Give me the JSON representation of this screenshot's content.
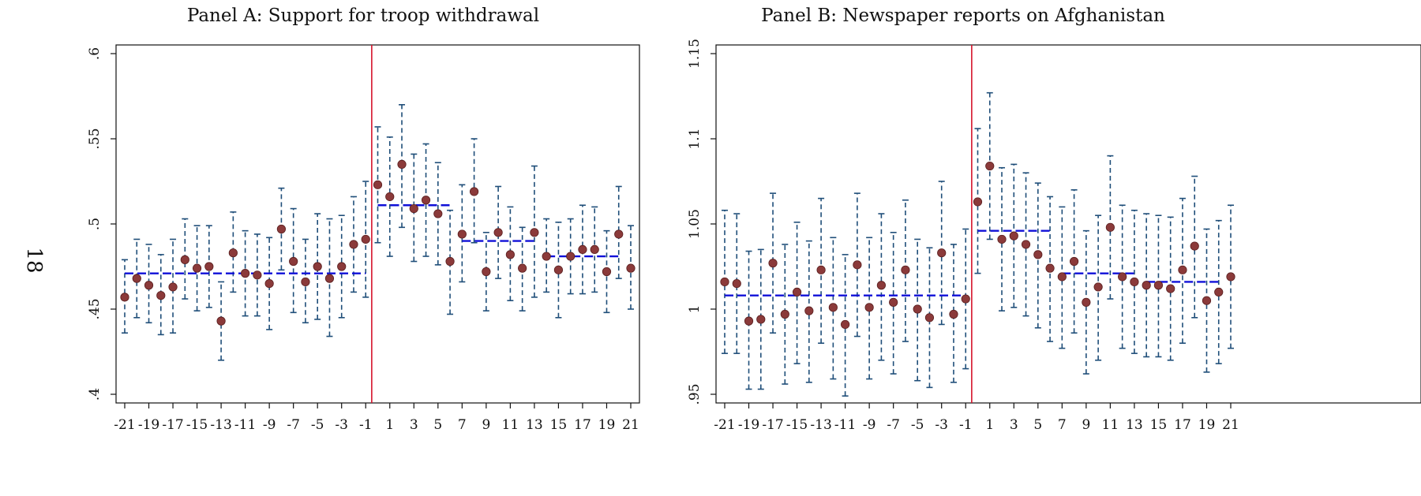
{
  "page_number": "18",
  "colors": {
    "point": "#8b3a3a",
    "ci": "#1f4e79",
    "mean": "#1010d8",
    "cutoff": "#d6142c"
  },
  "chart_data": [
    {
      "type": "scatter",
      "title": "Panel A: Support for troop withdrawal",
      "xlabel": "",
      "ylabel": "",
      "xlim": [
        -21,
        21
      ],
      "ylim": [
        0.4,
        0.6
      ],
      "xticks": [
        -21,
        -19,
        -17,
        -15,
        -13,
        -11,
        -9,
        -7,
        -5,
        -3,
        -1,
        1,
        3,
        5,
        7,
        9,
        11,
        13,
        15,
        17,
        19,
        21
      ],
      "xtick_labels": [
        "-21",
        "-19",
        "-17",
        "-15",
        "-13",
        "-11",
        "-9",
        "-7",
        "-5",
        "-3",
        "-1",
        "1",
        "3",
        "5",
        "7",
        "9",
        "11",
        "13",
        "15",
        "17",
        "19",
        "21"
      ],
      "yticks": [
        0.4,
        0.45,
        0.5,
        0.55,
        0.6
      ],
      "ytick_labels": [
        ".4",
        ".45",
        ".5",
        ".55",
        ".6"
      ],
      "x": [
        -21,
        -20,
        -19,
        -18,
        -17,
        -16,
        -15,
        -14,
        -13,
        -12,
        -11,
        -10,
        -9,
        -8,
        -7,
        -6,
        -5,
        -4,
        -3,
        -2,
        -1,
        0,
        1,
        2,
        3,
        4,
        5,
        6,
        7,
        8,
        9,
        10,
        11,
        12,
        13,
        14,
        15,
        16,
        17,
        18,
        19,
        20,
        21
      ],
      "y": [
        0.457,
        0.468,
        0.464,
        0.458,
        0.463,
        0.479,
        0.474,
        0.475,
        0.443,
        0.483,
        0.471,
        0.47,
        0.465,
        0.497,
        0.478,
        0.466,
        0.475,
        0.468,
        0.475,
        0.488,
        0.491,
        0.523,
        0.516,
        0.535,
        0.509,
        0.514,
        0.506,
        0.478,
        0.494,
        0.519,
        0.472,
        0.495,
        0.482,
        0.474,
        0.495,
        0.481,
        0.473,
        0.481,
        0.485,
        0.485,
        0.472,
        0.494,
        0.474
      ],
      "ci_low": [
        0.436,
        0.445,
        0.442,
        0.435,
        0.436,
        0.456,
        0.449,
        0.451,
        0.42,
        0.46,
        0.446,
        0.446,
        0.438,
        0.473,
        0.448,
        0.442,
        0.444,
        0.434,
        0.445,
        0.46,
        0.457,
        0.489,
        0.481,
        0.498,
        0.478,
        0.481,
        0.476,
        0.447,
        0.466,
        0.489,
        0.449,
        0.468,
        0.455,
        0.449,
        0.457,
        0.46,
        0.445,
        0.459,
        0.459,
        0.46,
        0.448,
        0.468,
        0.45
      ],
      "ci_high": [
        0.479,
        0.491,
        0.488,
        0.482,
        0.491,
        0.503,
        0.499,
        0.499,
        0.466,
        0.507,
        0.496,
        0.494,
        0.492,
        0.521,
        0.509,
        0.491,
        0.506,
        0.503,
        0.505,
        0.516,
        0.525,
        0.557,
        0.551,
        0.57,
        0.541,
        0.547,
        0.536,
        0.508,
        0.523,
        0.55,
        0.495,
        0.522,
        0.51,
        0.498,
        0.534,
        0.503,
        0.501,
        0.503,
        0.511,
        0.51,
        0.496,
        0.522,
        0.499
      ],
      "segment_means": [
        {
          "x_start": -21,
          "x_end": -1,
          "y": 0.471
        },
        {
          "x_start": 0,
          "x_end": 6,
          "y": 0.511
        },
        {
          "x_start": 7,
          "x_end": 13,
          "y": 0.49
        },
        {
          "x_start": 14,
          "x_end": 20,
          "y": 0.481
        }
      ],
      "cutoff_x": -0.5,
      "grid": false
    },
    {
      "type": "scatter",
      "title": "Panel B: Newspaper reports on Afghanistan",
      "xlabel": "",
      "ylabel": "",
      "xlim": [
        -21,
        21
      ],
      "ylim": [
        0.95,
        1.15
      ],
      "xticks": [
        -21,
        -19,
        -17,
        -15,
        -13,
        -11,
        -9,
        -7,
        -5,
        -3,
        -1,
        1,
        3,
        5,
        7,
        9,
        11,
        13,
        15,
        17,
        19,
        21
      ],
      "xtick_labels": [
        "-21",
        "-19",
        "-17",
        "-15",
        "-13",
        "-11",
        "-9",
        "-7",
        "-5",
        "-3",
        "-1",
        "1",
        "3",
        "5",
        "7",
        "9",
        "11",
        "13",
        "15",
        "17",
        "19",
        "21"
      ],
      "yticks": [
        0.95,
        1.0,
        1.05,
        1.1,
        1.15
      ],
      "ytick_labels": [
        ".95",
        "1",
        "1.05",
        "1.1",
        "1.15"
      ],
      "x": [
        -21,
        -20,
        -19,
        -18,
        -17,
        -16,
        -15,
        -14,
        -13,
        -12,
        -11,
        -10,
        -9,
        -8,
        -7,
        -6,
        -5,
        -4,
        -3,
        -2,
        -1,
        0,
        1,
        2,
        3,
        4,
        5,
        6,
        7,
        8,
        9,
        10,
        11,
        12,
        13,
        14,
        15,
        16,
        17,
        18,
        19,
        20,
        21
      ],
      "y": [
        1.016,
        1.015,
        0.993,
        0.994,
        1.027,
        0.997,
        1.01,
        0.999,
        1.023,
        1.001,
        0.991,
        1.026,
        1.001,
        1.014,
        1.004,
        1.023,
        1.0,
        0.995,
        1.033,
        0.997,
        1.006,
        1.063,
        1.084,
        1.041,
        1.043,
        1.038,
        1.032,
        1.024,
        1.019,
        1.028,
        1.004,
        1.013,
        1.048,
        1.019,
        1.016,
        1.014,
        1.014,
        1.012,
        1.023,
        1.037,
        1.005,
        1.01,
        1.019
      ],
      "ci_low": [
        0.974,
        0.974,
        0.953,
        0.953,
        0.986,
        0.956,
        0.968,
        0.957,
        0.98,
        0.959,
        0.949,
        0.984,
        0.959,
        0.97,
        0.962,
        0.981,
        0.958,
        0.954,
        0.991,
        0.957,
        0.965,
        1.021,
        1.041,
        0.999,
        1.001,
        0.996,
        0.989,
        0.981,
        0.977,
        0.986,
        0.962,
        0.97,
        1.006,
        0.977,
        0.974,
        0.972,
        0.972,
        0.97,
        0.98,
        0.995,
        0.963,
        0.968,
        0.977
      ],
      "ci_high": [
        1.058,
        1.056,
        1.034,
        1.035,
        1.068,
        1.038,
        1.051,
        1.04,
        1.065,
        1.042,
        1.032,
        1.068,
        1.042,
        1.056,
        1.045,
        1.064,
        1.041,
        1.036,
        1.075,
        1.038,
        1.047,
        1.106,
        1.127,
        1.083,
        1.085,
        1.08,
        1.074,
        1.066,
        1.06,
        1.07,
        1.046,
        1.055,
        1.09,
        1.061,
        1.058,
        1.056,
        1.055,
        1.054,
        1.065,
        1.078,
        1.047,
        1.052,
        1.061
      ],
      "segment_means": [
        {
          "x_start": -21,
          "x_end": -1,
          "y": 1.008
        },
        {
          "x_start": 0,
          "x_end": 6,
          "y": 1.046
        },
        {
          "x_start": 7,
          "x_end": 13,
          "y": 1.021
        },
        {
          "x_start": 14,
          "x_end": 20,
          "y": 1.016
        }
      ],
      "cutoff_x": -0.5,
      "grid": false
    }
  ]
}
